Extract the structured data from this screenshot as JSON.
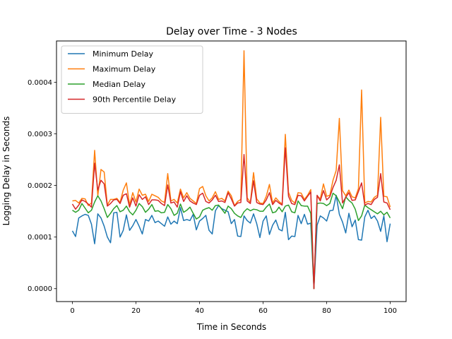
{
  "chart_data": {
    "type": "line",
    "title": "Delay over Time - 3 Nodes",
    "xlabel": "Time in Seconds",
    "ylabel": "Logging Delay in Seconds",
    "xlim": [
      -5,
      105
    ],
    "ylim": [
      -2.5e-05,
      0.00048
    ],
    "x_ticks": [
      0,
      20,
      40,
      60,
      80,
      100
    ],
    "x_tick_labels": [
      "0",
      "20",
      "40",
      "60",
      "80",
      "100"
    ],
    "y_ticks": [
      0,
      0.0001,
      0.0002,
      0.0003,
      0.0004
    ],
    "y_tick_labels": [
      "0.0000",
      "0.0001",
      "0.0002",
      "0.0003",
      "0.0004"
    ],
    "grid": false,
    "legend_position": "top-left",
    "x": [
      0,
      1,
      2,
      3,
      4,
      5,
      6,
      7,
      8,
      9,
      10,
      11,
      12,
      13,
      14,
      15,
      16,
      17,
      18,
      19,
      20,
      21,
      22,
      23,
      24,
      25,
      26,
      27,
      28,
      29,
      30,
      31,
      32,
      33,
      34,
      35,
      36,
      37,
      38,
      39,
      40,
      41,
      42,
      43,
      44,
      45,
      46,
      47,
      48,
      49,
      50,
      51,
      52,
      53,
      54,
      55,
      56,
      57,
      58,
      59,
      60,
      61,
      62,
      63,
      64,
      65,
      66,
      67,
      68,
      69,
      70,
      71,
      72,
      73,
      74,
      75,
      76,
      77,
      78,
      79,
      80,
      81,
      82,
      83,
      84,
      85,
      86,
      87,
      88,
      89,
      90,
      91,
      92,
      93,
      94,
      95,
      96,
      97,
      98,
      99,
      100
    ],
    "series": [
      {
        "name": "Minimum Delay",
        "color": "#1f77b4",
        "values": [
          0.000112,
          0.000101,
          0.000137,
          0.000141,
          0.000144,
          0.000142,
          0.000125,
          8.7e-05,
          0.000145,
          0.000137,
          0.000121,
          0.0001,
          8.9e-05,
          0.000147,
          0.000148,
          0.0001,
          0.000113,
          0.000143,
          0.000113,
          0.000122,
          0.000134,
          0.000121,
          0.000106,
          0.000134,
          0.000131,
          0.000142,
          0.000128,
          0.000131,
          0.000126,
          0.000121,
          0.000139,
          0.000125,
          0.000131,
          0.000126,
          0.000157,
          0.000132,
          0.000134,
          0.000132,
          0.000144,
          0.000114,
          0.000131,
          0.000136,
          0.000142,
          0.000113,
          0.000106,
          0.000151,
          0.000161,
          0.000155,
          0.000152,
          0.000149,
          0.000126,
          0.000134,
          0.000102,
          0.000101,
          0.000141,
          0.000132,
          0.000127,
          0.000145,
          0.000126,
          9.9e-05,
          0.000131,
          0.000141,
          0.000105,
          0.000123,
          0.000133,
          0.000115,
          0.000112,
          0.000148,
          9.5e-05,
          0.000102,
          0.000101,
          0.000142,
          0.000126,
          0.000144,
          0.000125,
          0.000127,
          0.0,
          0.000123,
          0.000141,
          0.000137,
          0.000131,
          0.000151,
          0.000152,
          0.000181,
          0.000144,
          0.000129,
          0.000108,
          0.000146,
          0.00012,
          0.000133,
          9.5e-05,
          9.4e-05,
          0.000139,
          0.000152,
          0.000136,
          0.000141,
          0.000131,
          0.000111,
          0.000141,
          9.1e-05,
          0.000126
        ]
      },
      {
        "name": "Maximum Delay",
        "color": "#ff7f0e",
        "values": [
          0.00017,
          0.000171,
          0.000166,
          0.000175,
          0.000174,
          0.000161,
          0.000166,
          0.000268,
          0.00018,
          0.000231,
          0.000226,
          0.000162,
          0.000173,
          0.000173,
          0.000175,
          0.000167,
          0.000191,
          0.000205,
          0.000162,
          0.000186,
          0.000168,
          0.000193,
          0.000181,
          0.000183,
          0.000169,
          0.000183,
          0.00018,
          0.000177,
          0.00017,
          0.000167,
          0.000223,
          0.00017,
          0.000173,
          0.000166,
          0.000193,
          0.000176,
          0.000186,
          0.000175,
          0.00017,
          0.000165,
          0.000194,
          0.000198,
          0.00018,
          0.00017,
          0.000176,
          0.000188,
          0.000173,
          0.000175,
          0.00017,
          0.000189,
          0.00018,
          0.000161,
          0.000169,
          0.000173,
          0.000461,
          0.000176,
          0.000167,
          0.000225,
          0.000174,
          0.000166,
          0.000165,
          0.000179,
          0.000202,
          0.000166,
          0.000176,
          0.000169,
          0.000164,
          0.000299,
          0.000187,
          0.000171,
          0.000166,
          0.000186,
          0.000185,
          0.000173,
          0.000181,
          0.000192,
          0.0,
          0.00018,
          0.000174,
          0.000203,
          0.000179,
          0.000181,
          0.00021,
          0.000229,
          0.00033,
          0.00019,
          0.00018,
          0.000191,
          0.000178,
          0.000176,
          0.000194,
          0.000385,
          0.000166,
          0.000169,
          0.000168,
          0.000177,
          0.000181,
          0.000332,
          0.000179,
          0.000178,
          0.000158
        ]
      },
      {
        "name": "Median Delay",
        "color": "#2ca02c",
        "values": [
          0.000152,
          0.000148,
          0.000152,
          0.000165,
          0.000156,
          0.000147,
          0.000152,
          0.000168,
          0.00018,
          0.00017,
          0.000155,
          0.000138,
          0.000146,
          0.000155,
          0.000161,
          0.000149,
          0.000152,
          0.00016,
          0.000149,
          0.000143,
          0.000152,
          0.000165,
          0.000159,
          0.000148,
          0.000154,
          0.000163,
          0.00015,
          0.000151,
          0.000147,
          0.000148,
          0.000163,
          0.000155,
          0.000142,
          0.000146,
          0.000164,
          0.000148,
          0.000152,
          0.000158,
          0.000146,
          0.000135,
          0.000139,
          0.000152,
          0.000155,
          0.000157,
          0.000152,
          0.000161,
          0.000162,
          0.000154,
          0.000146,
          0.00016,
          0.000155,
          0.000146,
          0.000141,
          0.000138,
          0.000149,
          0.000155,
          0.000151,
          0.000154,
          0.000153,
          0.00015,
          0.00015,
          0.000158,
          0.000164,
          0.000147,
          0.000149,
          0.000158,
          0.000149,
          0.00016,
          0.000162,
          0.000149,
          0.000147,
          0.00017,
          0.000161,
          0.00016,
          0.00016,
          0.000146,
          0.0,
          0.000165,
          0.000166,
          0.000165,
          0.000161,
          0.000165,
          0.000185,
          0.00018,
          0.000168,
          0.000155,
          0.000178,
          0.000171,
          0.000166,
          0.000154,
          0.000132,
          0.000141,
          0.000162,
          0.000157,
          0.000153,
          0.000149,
          0.000145,
          0.00015,
          0.000143,
          0.000148,
          0.000137
        ]
      },
      {
        "name": "90th Percentile Delay",
        "color": "#d62728",
        "values": [
          0.000164,
          0.000154,
          0.000162,
          0.000172,
          0.000169,
          0.000164,
          0.000158,
          0.000243,
          0.000191,
          0.00021,
          0.000203,
          0.00016,
          0.000165,
          0.000172,
          0.000173,
          0.000165,
          0.000181,
          0.000184,
          0.000158,
          0.000176,
          0.00016,
          0.000182,
          0.000173,
          0.000178,
          0.000163,
          0.000172,
          0.000172,
          0.000171,
          0.000165,
          0.000161,
          0.000201,
          0.000166,
          0.000168,
          0.000158,
          0.000188,
          0.000169,
          0.00018,
          0.00017,
          0.000166,
          0.000163,
          0.000181,
          0.000185,
          0.000169,
          0.000166,
          0.000172,
          0.000181,
          0.000169,
          0.00017,
          0.000167,
          0.000186,
          0.000174,
          0.00016,
          0.000166,
          0.000167,
          0.00026,
          0.00017,
          0.000165,
          0.000209,
          0.000167,
          0.000164,
          0.000163,
          0.000172,
          0.000186,
          0.000163,
          0.000171,
          0.000166,
          0.000162,
          0.000273,
          0.000179,
          0.000165,
          0.000163,
          0.000181,
          0.00018,
          0.00017,
          0.000179,
          0.000187,
          0.0,
          0.000181,
          0.00017,
          0.00019,
          0.000172,
          0.000178,
          0.000196,
          0.00021,
          0.00024,
          0.000166,
          0.000177,
          0.000186,
          0.000171,
          0.000172,
          0.000188,
          0.000205,
          0.000162,
          0.000165,
          0.000163,
          0.000173,
          0.000177,
          0.000223,
          0.000168,
          0.000166,
          0.000153
        ]
      }
    ]
  }
}
